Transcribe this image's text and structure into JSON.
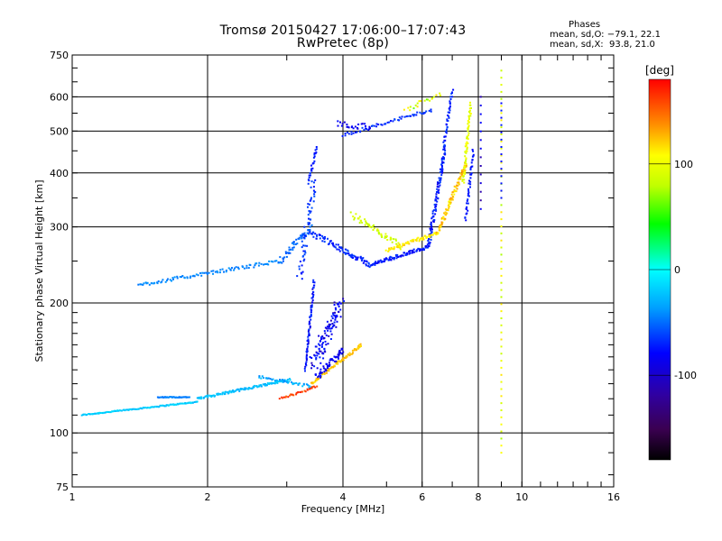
{
  "chart_data": {
    "type": "scatter",
    "title": "Tromsø 20150427 17:06:00–17:07:43",
    "subtitle": "RwPretec (8p)",
    "xlabel": "Frequency [MHz]",
    "ylabel": "Stationary phase Virtual Height [km]",
    "xscale": "log",
    "yscale": "log",
    "xlim": [
      1,
      16
    ],
    "ylim": [
      75,
      750
    ],
    "x_ticks": [
      1,
      2,
      4,
      6,
      8,
      10,
      16
    ],
    "y_ticks": [
      75,
      100,
      200,
      300,
      400,
      500,
      600,
      750
    ],
    "grid": true,
    "colorbar": {
      "label": "[deg]",
      "range": [
        -180,
        180
      ],
      "ticks": [
        100,
        0,
        -100
      ]
    },
    "phase_stats": {
      "heading": "Phases",
      "o_line": "mean, sd,O: −79.1, 22.1",
      "x_line": "mean, sd,X:  93.8, 21.0"
    },
    "series": [
      {
        "segments": [
          {
            "x0": 1.05,
            "x1": 1.9,
            "y0": 110,
            "y1": 118,
            "n": 110,
            "phase": [
              -10,
              -35
            ],
            "jit": 0.004
          },
          {
            "x0": 1.55,
            "x1": 1.82,
            "y0": 121,
            "y1": 121,
            "n": 35,
            "phase": [
              -50,
              -60
            ],
            "jit": 0.003
          },
          {
            "x0": 1.9,
            "x1": 3.05,
            "y0": 120,
            "y1": 133,
            "n": 120,
            "phase": [
              -20,
              -40
            ],
            "jit": 0.008
          },
          {
            "x0": 2.6,
            "x1": 3.4,
            "y0": 135,
            "y1": 128,
            "n": 40,
            "phase": [
              -25,
              -55
            ],
            "jit": 0.01
          },
          {
            "x0": 2.9,
            "x1": 3.5,
            "y0": 120,
            "y1": 128,
            "n": 30,
            "phase": [
              150,
              175
            ],
            "jit": 0.008
          },
          {
            "x0": 3.4,
            "x1": 4.4,
            "y0": 130,
            "y1": 160,
            "n": 80,
            "phase": [
              110,
              130
            ],
            "jit": 0.01
          },
          {
            "x0": 3.5,
            "x1": 4.0,
            "y0": 135,
            "y1": 155,
            "n": 60,
            "phase": [
              -95,
              -110
            ],
            "jit": 0.02
          },
          {
            "x0": 3.3,
            "x1": 3.45,
            "y0": 140,
            "y1": 225,
            "n": 70,
            "phase": [
              -80,
              -110
            ],
            "jit": 0.008
          },
          {
            "x0": 3.45,
            "x1": 3.95,
            "y0": 145,
            "y1": 200,
            "n": 110,
            "phase": [
              -85,
              -115
            ],
            "jit": 0.05
          },
          {
            "x0": 1.4,
            "x1": 2.9,
            "y0": 220,
            "y1": 250,
            "n": 100,
            "phase": [
              -45,
              -60
            ],
            "jit": 0.012
          },
          {
            "x0": 2.9,
            "x1": 3.4,
            "y0": 250,
            "y1": 300,
            "n": 50,
            "phase": [
              -55,
              -70
            ],
            "jit": 0.02
          },
          {
            "x0": 3.2,
            "x1": 3.45,
            "y0": 230,
            "y1": 380,
            "n": 60,
            "phase": [
              -70,
              -95
            ],
            "jit": 0.03
          },
          {
            "x0": 3.35,
            "x1": 3.5,
            "y0": 380,
            "y1": 460,
            "n": 25,
            "phase": [
              -80,
              -100
            ],
            "jit": 0.01
          },
          {
            "x0": 3.4,
            "x1": 4.6,
            "y0": 290,
            "y1": 245,
            "n": 90,
            "phase": [
              -75,
              -100
            ],
            "jit": 0.02
          },
          {
            "x0": 4.6,
            "x1": 6.2,
            "y0": 245,
            "y1": 270,
            "n": 90,
            "phase": [
              -80,
              -105
            ],
            "jit": 0.012
          },
          {
            "x0": 6.2,
            "x1": 6.75,
            "y0": 270,
            "y1": 460,
            "n": 110,
            "phase": [
              -75,
              -105
            ],
            "jit": 0.015
          },
          {
            "x0": 6.7,
            "x1": 7.0,
            "y0": 460,
            "y1": 620,
            "n": 40,
            "phase": [
              -75,
              -100
            ],
            "jit": 0.01
          },
          {
            "x0": 4.0,
            "x1": 6.3,
            "y0": 490,
            "y1": 560,
            "n": 60,
            "phase": [
              -75,
              -95
            ],
            "jit": 0.012
          },
          {
            "x0": 3.9,
            "x1": 4.6,
            "y0": 520,
            "y1": 510,
            "n": 25,
            "phase": [
              -95,
              -110
            ],
            "jit": 0.02
          },
          {
            "x0": 4.2,
            "x1": 5.4,
            "y0": 320,
            "y1": 270,
            "n": 60,
            "phase": [
              75,
              90
            ],
            "jit": 0.02
          },
          {
            "x0": 5.0,
            "x1": 6.5,
            "y0": 265,
            "y1": 290,
            "n": 70,
            "phase": [
              95,
              120
            ],
            "jit": 0.012
          },
          {
            "x0": 6.5,
            "x1": 7.5,
            "y0": 290,
            "y1": 420,
            "n": 90,
            "phase": [
              95,
              140
            ],
            "jit": 0.015
          },
          {
            "x0": 7.4,
            "x1": 7.7,
            "y0": 380,
            "y1": 580,
            "n": 60,
            "phase": [
              80,
              100
            ],
            "jit": 0.01
          },
          {
            "x0": 7.5,
            "x1": 7.8,
            "y0": 310,
            "y1": 450,
            "n": 40,
            "phase": [
              -85,
              -100
            ],
            "jit": 0.01
          },
          {
            "x0": 5.5,
            "x1": 6.6,
            "y0": 560,
            "y1": 610,
            "n": 20,
            "phase": [
              60,
              110
            ],
            "jit": 0.015
          },
          {
            "x0": 9.0,
            "x1": 9.0,
            "y0": 90,
            "y1": 690,
            "n": 55,
            "phase": [
              70,
              110
            ],
            "jit": 0.0
          },
          {
            "x0": 9.0,
            "x1": 9.0,
            "y0": 350,
            "y1": 580,
            "n": 14,
            "phase": [
              -90,
              -100
            ],
            "jit": 0.0
          },
          {
            "x0": 8.1,
            "x1": 8.1,
            "y0": 330,
            "y1": 600,
            "n": 14,
            "phase": [
              -100,
              -120
            ],
            "jit": 0.0
          }
        ]
      }
    ]
  }
}
